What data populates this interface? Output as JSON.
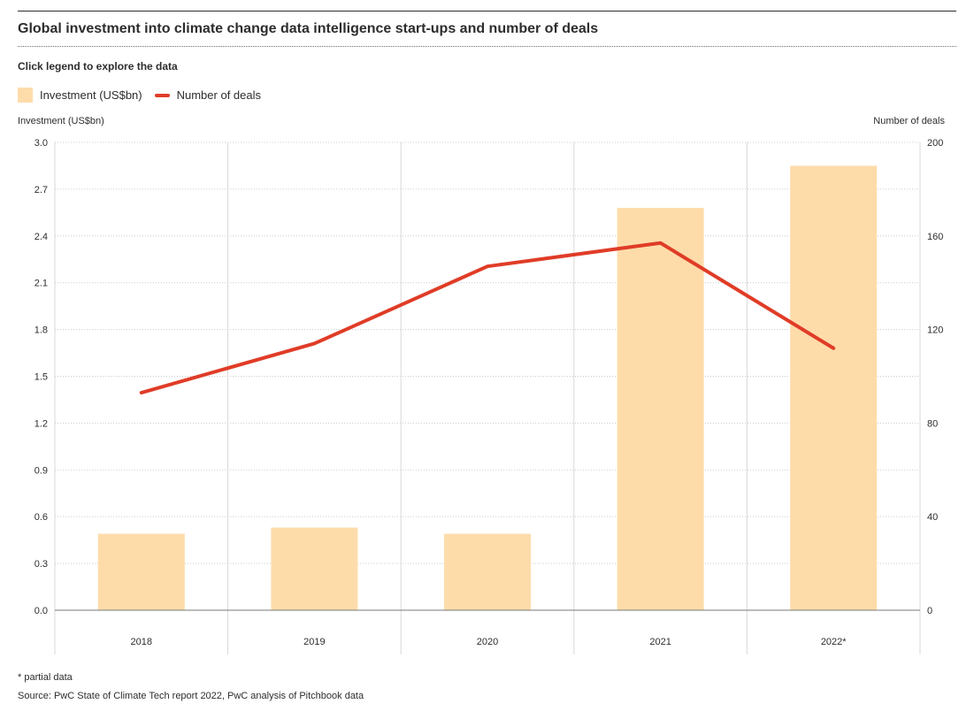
{
  "title": "Global investment into climate change data intelligence start-ups and number of deals",
  "subtitle": "Click legend to explore the data",
  "legend": {
    "investment": "Investment (US$bn)",
    "deals": "Number of deals"
  },
  "axis": {
    "left_title": "Investment (US$bn)",
    "right_title": "Number of deals"
  },
  "footnote": "* partial data",
  "source": "Source: PwC State of Climate Tech report 2022, PwC analysis of Pitchbook data",
  "colors": {
    "bar": "#fedcaa",
    "line": "#e03c27",
    "grid": "#cccccc",
    "text": "#2d2d2d"
  },
  "chart_data": {
    "type": "bar+line",
    "categories": [
      "2018",
      "2019",
      "2020",
      "2021",
      "2022*"
    ],
    "series": [
      {
        "name": "Investment (US$bn)",
        "type": "bar",
        "axis": "left",
        "values": [
          0.49,
          0.53,
          0.49,
          2.58,
          2.85
        ]
      },
      {
        "name": "Number of deals",
        "type": "line",
        "axis": "right",
        "values": [
          93,
          114,
          147,
          157,
          112
        ]
      }
    ],
    "y_left": {
      "label": "Investment (US$bn)",
      "min": 0,
      "max": 3.0,
      "ticks": [
        "0.0",
        "0.3",
        "0.6",
        "0.9",
        "1.2",
        "1.5",
        "1.8",
        "2.1",
        "2.4",
        "2.7",
        "3.0"
      ]
    },
    "y_right": {
      "label": "Number of deals",
      "min": 0,
      "max": 200,
      "ticks": [
        "0",
        "40",
        "80",
        "120",
        "160",
        "200"
      ]
    },
    "grid": true,
    "legend_position": "top-left"
  }
}
